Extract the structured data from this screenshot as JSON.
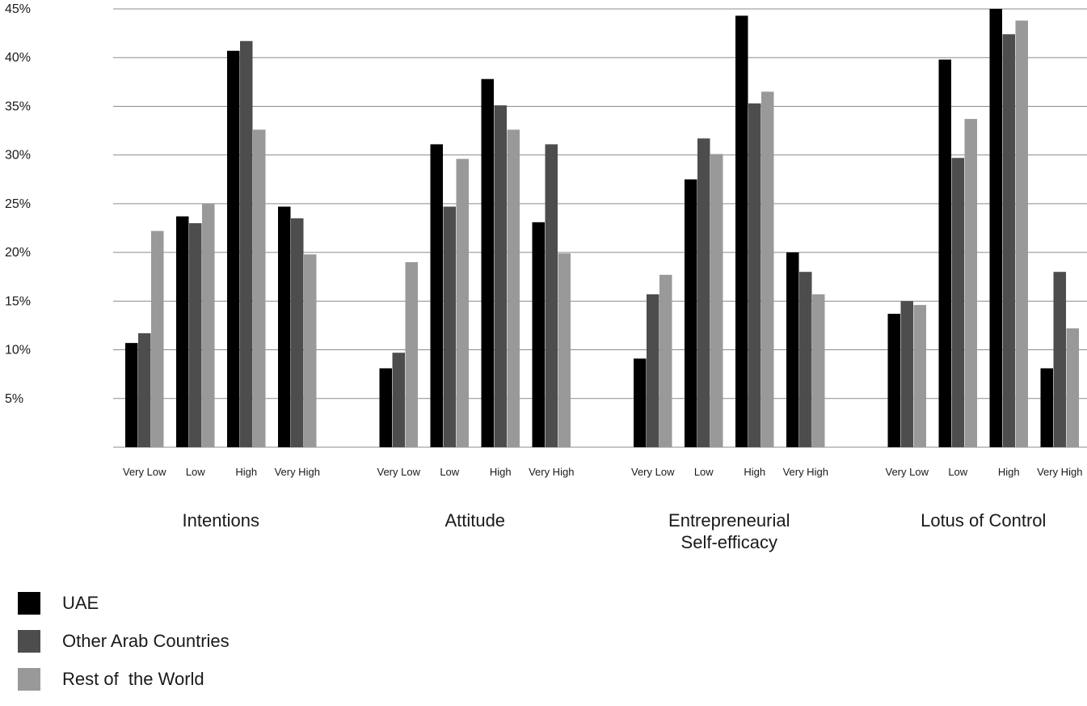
{
  "chart_data": {
    "type": "bar",
    "title": "",
    "xlabel": "",
    "ylabel": "",
    "ylim": [
      0,
      45
    ],
    "y_ticks": [
      "5%",
      "10%",
      "15%",
      "20%",
      "25%",
      "30%",
      "35%",
      "40%",
      "45%"
    ],
    "grid": true,
    "legend_position": "bottom-left",
    "groups": [
      {
        "label": [
          "Intentions"
        ],
        "categories": [
          "Very Low",
          "Low",
          "High",
          "Very High"
        ],
        "series": [
          {
            "name": "UAE",
            "values": [
              10.7,
              23.7,
              40.7,
              24.7
            ]
          },
          {
            "name": "Other Arab Countries",
            "values": [
              11.7,
              23.0,
              41.7,
              23.5
            ]
          },
          {
            "name": "Rest of  the World",
            "values": [
              22.2,
              25.0,
              32.6,
              19.8
            ]
          }
        ]
      },
      {
        "label": [
          "Attitude"
        ],
        "categories": [
          "Very Low",
          "Low",
          "High",
          "Very High"
        ],
        "series": [
          {
            "name": "UAE",
            "values": [
              8.1,
              31.1,
              37.8,
              23.1
            ]
          },
          {
            "name": "Other Arab Countries",
            "values": [
              9.7,
              24.7,
              35.1,
              31.1
            ]
          },
          {
            "name": "Rest of  the World",
            "values": [
              19.0,
              29.6,
              32.6,
              19.9
            ]
          }
        ]
      },
      {
        "label": [
          "Entrepreneurial",
          "Self-efficacy"
        ],
        "categories": [
          "Very Low",
          "Low",
          "High",
          "Very High"
        ],
        "series": [
          {
            "name": "UAE",
            "values": [
              9.1,
              27.5,
              44.3,
              20.0
            ]
          },
          {
            "name": "Other Arab Countries",
            "values": [
              15.7,
              31.7,
              35.3,
              18.0
            ]
          },
          {
            "name": "Rest of  the World",
            "values": [
              17.7,
              30.1,
              36.5,
              15.7
            ]
          }
        ]
      },
      {
        "label": [
          "Lotus of Control"
        ],
        "categories": [
          "Very Low",
          "Low",
          "High",
          "Very High"
        ],
        "series": [
          {
            "name": "UAE",
            "values": [
              13.7,
              39.8,
              45.0,
              8.1
            ]
          },
          {
            "name": "Other Arab Countries",
            "values": [
              15.0,
              29.7,
              42.4,
              18.0
            ]
          },
          {
            "name": "Rest of  the World",
            "values": [
              14.6,
              33.7,
              43.8,
              12.2
            ]
          }
        ]
      }
    ]
  },
  "legend": [
    {
      "name": "UAE",
      "color": "#000000"
    },
    {
      "name": "Other Arab Countries",
      "color": "#4d4d4d"
    },
    {
      "name": "Rest of  the World",
      "color": "#999999"
    }
  ]
}
